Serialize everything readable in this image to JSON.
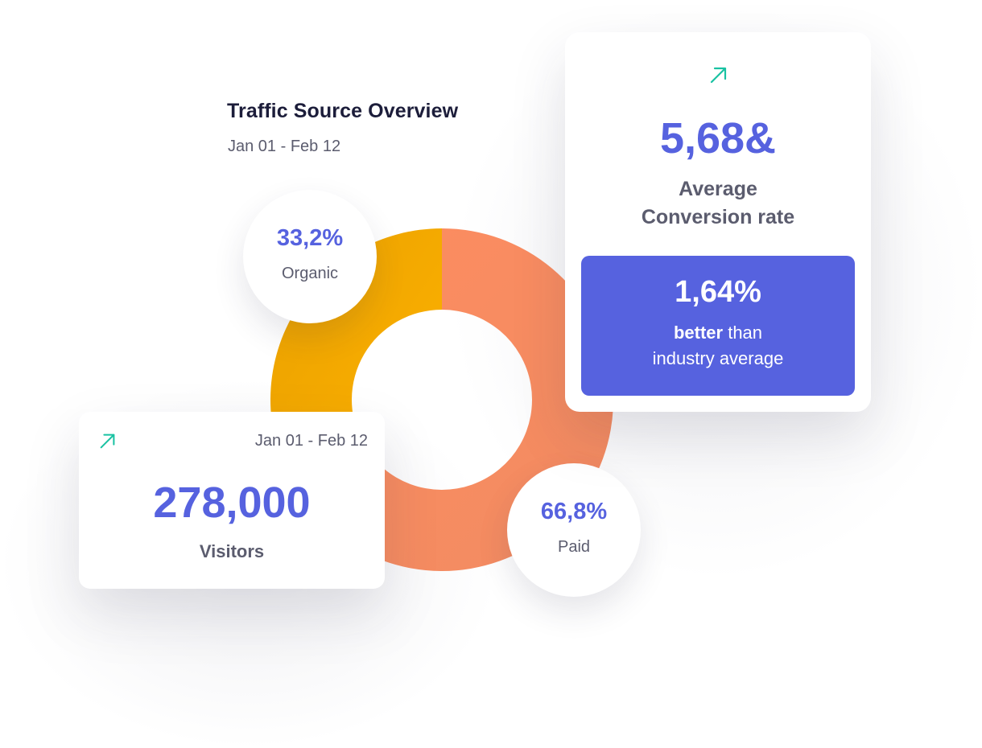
{
  "overview": {
    "title": "Traffic Source Overview",
    "date_range": "Jan 01 - Feb 12"
  },
  "chart_data": {
    "type": "pie",
    "categories": [
      "Organic",
      "Paid"
    ],
    "values": [
      33.2,
      66.8
    ],
    "labels": [
      "33,2%",
      "66,8%"
    ],
    "colors": [
      "#f9ae00",
      "#fa8d62"
    ],
    "title": "Traffic Source Overview"
  },
  "conversion": {
    "icon": "trend-up-arrow-icon",
    "value": "5,68&",
    "label_line1": "Average",
    "label_line2": "Conversion rate",
    "comparison_value": "1,64%",
    "comparison_bold": "better",
    "comparison_rest": " than",
    "comparison_line2": "industry average"
  },
  "visitors": {
    "icon": "trend-up-arrow-icon",
    "date_range": "Jan 01 - Feb 12",
    "value": "278,000",
    "label": "Visitors"
  },
  "colors": {
    "accent": "#5662df",
    "trend_arrow": "#19c2a2",
    "organic": "#f9ae00",
    "paid": "#fa8d62",
    "heading": "#1c1d3a",
    "muted_text": "#5b5c6e"
  }
}
